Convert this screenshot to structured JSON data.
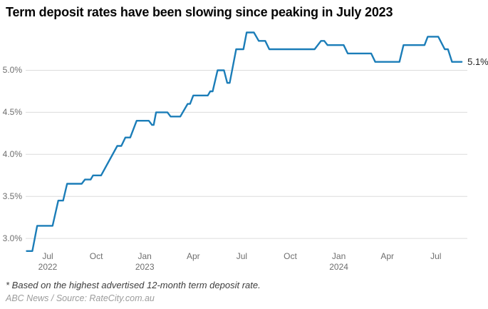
{
  "title": "Term deposit rates have been slowing since peaking in July 2023",
  "footnote": "* Based on the highest advertised 12-month term deposit rate.",
  "source": "ABC News / Source: RateCity.com.au",
  "colors": {
    "line": "#1b7db8",
    "grid": "#dcdcdc",
    "axis_text": "#6e6e6e",
    "title_text": "#060606",
    "footnote_text": "#3d3d3d",
    "source_text": "#9c9c9c",
    "end_label_text": "#222222",
    "background": "#ffffff"
  },
  "chart_data": {
    "type": "line",
    "title": "Term deposit rates have been slowing since peaking in July 2023",
    "xlabel": "",
    "ylabel": "",
    "unit": "%",
    "grid": "horizontal-only",
    "legend_position": "none",
    "x_unit": "months since July 2022 tick",
    "ylim": [
      2.75,
      5.55
    ],
    "yticks": [
      {
        "value": 3.0,
        "label": "3.0%"
      },
      {
        "value": 3.5,
        "label": "3.5%"
      },
      {
        "value": 4.0,
        "label": "4.0%"
      },
      {
        "value": 4.5,
        "label": "4.5%"
      },
      {
        "value": 5.0,
        "label": "5.0%"
      }
    ],
    "xticks": [
      {
        "m": 0,
        "label": "Jul",
        "year": "2022"
      },
      {
        "m": 3,
        "label": "Oct"
      },
      {
        "m": 6,
        "label": "Jan",
        "year": "2023"
      },
      {
        "m": 9,
        "label": "Apr"
      },
      {
        "m": 12,
        "label": "Jul"
      },
      {
        "m": 15,
        "label": "Oct"
      },
      {
        "m": 18,
        "label": "Jan",
        "year": "2024"
      },
      {
        "m": 21,
        "label": "Apr"
      },
      {
        "m": 24,
        "label": "Jul"
      }
    ],
    "series": [
      {
        "name": "Highest advertised 12-month term deposit rate",
        "points": [
          [
            -1.3,
            2.85
          ],
          [
            -0.95,
            2.85
          ],
          [
            -0.65,
            3.15
          ],
          [
            0.3,
            3.15
          ],
          [
            0.65,
            3.45
          ],
          [
            0.95,
            3.45
          ],
          [
            1.2,
            3.65
          ],
          [
            2.1,
            3.65
          ],
          [
            2.3,
            3.7
          ],
          [
            2.65,
            3.7
          ],
          [
            2.8,
            3.75
          ],
          [
            3.3,
            3.75
          ],
          [
            4.3,
            4.1
          ],
          [
            4.55,
            4.1
          ],
          [
            4.8,
            4.2
          ],
          [
            5.1,
            4.2
          ],
          [
            5.5,
            4.4
          ],
          [
            6.25,
            4.4
          ],
          [
            6.45,
            4.35
          ],
          [
            6.55,
            4.35
          ],
          [
            6.7,
            4.5
          ],
          [
            7.4,
            4.5
          ],
          [
            7.6,
            4.45
          ],
          [
            8.2,
            4.45
          ],
          [
            8.65,
            4.6
          ],
          [
            8.8,
            4.6
          ],
          [
            9.0,
            4.7
          ],
          [
            9.9,
            4.7
          ],
          [
            10.05,
            4.75
          ],
          [
            10.2,
            4.75
          ],
          [
            10.5,
            5.0
          ],
          [
            10.9,
            5.0
          ],
          [
            11.1,
            4.85
          ],
          [
            11.25,
            4.85
          ],
          [
            11.65,
            5.25
          ],
          [
            12.1,
            5.25
          ],
          [
            12.3,
            5.45
          ],
          [
            12.75,
            5.45
          ],
          [
            13.05,
            5.35
          ],
          [
            13.45,
            5.35
          ],
          [
            13.7,
            5.25
          ],
          [
            16.5,
            5.25
          ],
          [
            16.9,
            5.35
          ],
          [
            17.1,
            5.35
          ],
          [
            17.3,
            5.3
          ],
          [
            18.3,
            5.3
          ],
          [
            18.55,
            5.2
          ],
          [
            20.0,
            5.2
          ],
          [
            20.25,
            5.1
          ],
          [
            21.75,
            5.1
          ],
          [
            22.0,
            5.3
          ],
          [
            23.3,
            5.3
          ],
          [
            23.5,
            5.4
          ],
          [
            24.15,
            5.4
          ],
          [
            24.55,
            5.25
          ],
          [
            24.75,
            5.25
          ],
          [
            25.0,
            5.1
          ],
          [
            25.6,
            5.1
          ]
        ]
      }
    ],
    "annotation": {
      "label": "5.1%",
      "value": 5.1
    }
  }
}
